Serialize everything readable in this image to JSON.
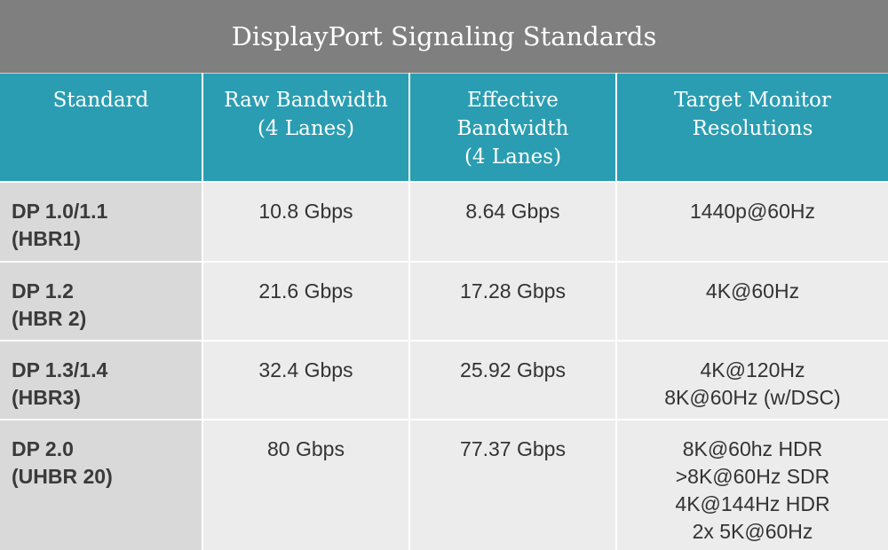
{
  "title": "DisplayPort Signaling Standards",
  "headers": [
    [
      "Standard"
    ],
    [
      "Raw Bandwidth",
      "(4 Lanes)"
    ],
    [
      "Effective",
      "Bandwidth",
      "(4 Lanes)"
    ],
    [
      "Target Monitor",
      "Resolutions"
    ]
  ],
  "rows": [
    {
      "standard": [
        "DP 1.0/1.1",
        "(HBR1)"
      ],
      "raw": "10.8 Gbps",
      "effective": "8.64 Gbps",
      "resolutions": [
        "1440p@60Hz"
      ]
    },
    {
      "standard": [
        "DP 1.2",
        "(HBR 2)"
      ],
      "raw": "21.6 Gbps",
      "effective": "17.28 Gbps",
      "resolutions": [
        "4K@60Hz"
      ]
    },
    {
      "standard": [
        "DP 1.3/1.4",
        "(HBR3)"
      ],
      "raw": "32.4 Gbps",
      "effective": "25.92 Gbps",
      "resolutions": [
        "4K@120Hz",
        "8K@60Hz (w/DSC)"
      ]
    },
    {
      "standard": [
        "DP 2.0",
        "(UHBR 20)"
      ],
      "raw": "80 Gbps",
      "effective": "77.37 Gbps",
      "resolutions": [
        "8K@60hz HDR",
        ">8K@60Hz SDR",
        "4K@144Hz HDR",
        "2x 5K@60Hz"
      ]
    }
  ],
  "colors": {
    "title_bg": "#7f7f7f",
    "header_bg": "#2a9db2",
    "first_col_bg": "#d9d9d9",
    "cell_bg": "#ececec"
  }
}
